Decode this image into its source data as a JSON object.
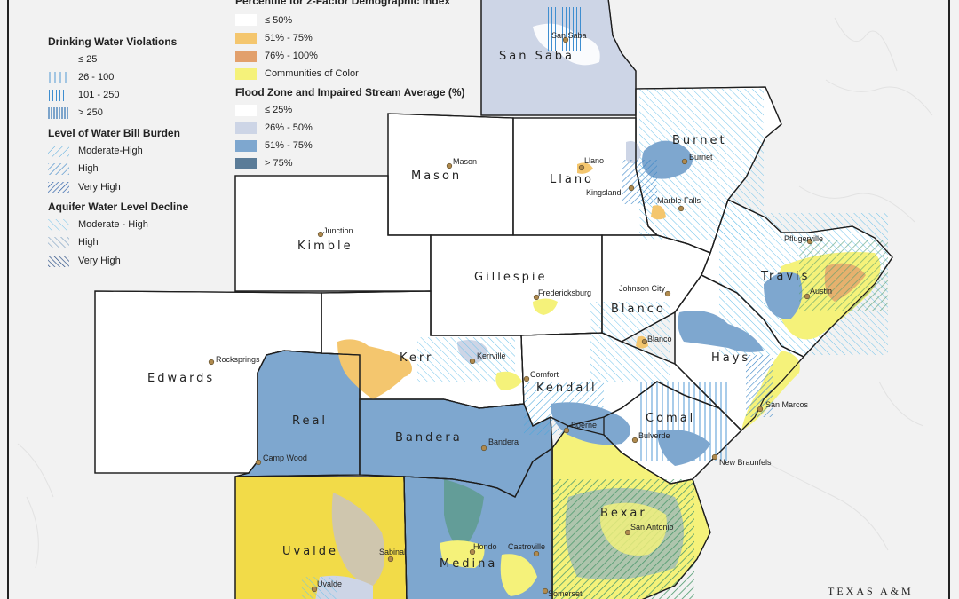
{
  "legend": {
    "title_top_fragment": "Percentile for 2-Factor Demographic Index",
    "header_left_fragment": "",
    "demographic": {
      "items": [
        {
          "label": "≤ 50%",
          "color": "#ffffff"
        },
        {
          "label": "51% - 75%",
          "color": "#f4c66e"
        },
        {
          "label": "76% - 100%",
          "color": "#e2a06c"
        },
        {
          "label": "Communities of Color",
          "color": "#f5f27a"
        }
      ]
    },
    "drinking_water": {
      "title": "Drinking Water Violations",
      "items": [
        {
          "label": "≤ 25"
        },
        {
          "label": "26 - 100"
        },
        {
          "label": "101 - 250"
        },
        {
          "label": "> 250"
        }
      ]
    },
    "water_bill": {
      "title": "Level of Water Bill Burden",
      "items": [
        {
          "label": "Moderate-High"
        },
        {
          "label": "High"
        },
        {
          "label": "Very High"
        }
      ]
    },
    "aquifer": {
      "title": "Aquifer Water Level Decline",
      "items": [
        {
          "label": "Moderate - High"
        },
        {
          "label": "High"
        },
        {
          "label": "Very High"
        }
      ]
    },
    "flood": {
      "title": "Flood Zone and Impaired Stream Average (%)",
      "items": [
        {
          "label": "≤ 25%",
          "color": "#ffffff"
        },
        {
          "label": "26% - 50%",
          "color": "#cdd5e6"
        },
        {
          "label": "51% - 75%",
          "color": "#7ea7cf"
        },
        {
          "label": "> 75%",
          "color": "#5b7c98"
        }
      ]
    }
  },
  "counties": {
    "san_saba": "San Saba",
    "burnet": "Burnet",
    "mason": "Mason",
    "llano": "Llano",
    "kimble": "Kimble",
    "gillespie": "Gillespie",
    "blanco": "Blanco",
    "travis": "Travis",
    "hays": "Hays",
    "kerr": "Kerr",
    "kendall": "Kendall",
    "edwards": "Edwards",
    "real": "Real",
    "comal": "Comal",
    "bandera": "Bandera",
    "bexar": "Bexar",
    "uvalde": "Uvalde",
    "medina": "Medina"
  },
  "towns": {
    "san_saba": "San Saba",
    "mason": "Mason",
    "llano": "Llano",
    "burnet": "Burnet",
    "kingsland": "Kingsland",
    "marble_falls": "Marble Falls",
    "junction": "Junction",
    "pflugerville": "Pflugerville",
    "austin": "Austin",
    "fredericksburg": "Fredericksburg",
    "johnson_city": "Johnson City",
    "blanco": "Blanco",
    "rocksprings": "Rocksprings",
    "kerrville": "Kerrville",
    "comfort": "Comfort",
    "san_marcos": "San Marcos",
    "boerne": "Boerne",
    "bulverde": "Bulverde",
    "bandera": "Bandera",
    "new_braunfels": "New Braunfels",
    "camp_wood": "Camp Wood",
    "san_antonio": "San Antonio",
    "sabinal": "Sabinal",
    "hondo": "Hondo",
    "castroville": "Castroville",
    "uvalde": "Uvalde",
    "somerset": "Somerset"
  },
  "credit": "TEXAS A&M"
}
